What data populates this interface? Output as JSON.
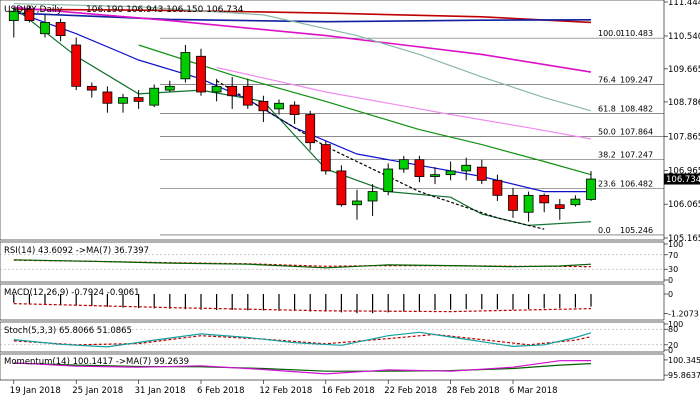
{
  "chart_data": {
    "type": "candlestick",
    "instrument_label": "USDJPY,Daily",
    "ohlc_readout": "106.190 106.943 106.150 106.734",
    "current_price_label": "106.734",
    "price_axis": {
      "ylim": [
        105.165,
        111.444
      ],
      "tick_labels": [
        "111.444",
        "110.540",
        "109.665",
        "108.786",
        "107.865",
        "106.965",
        "106.065",
        "105.165"
      ],
      "tick_values": [
        111.444,
        110.54,
        109.665,
        108.786,
        107.865,
        106.965,
        106.065,
        105.165
      ]
    },
    "x_axis_labels": [
      {
        "label": "19 Jan 2018",
        "index": 0
      },
      {
        "label": "25 Jan 2018",
        "index": 4
      },
      {
        "label": "31 Jan 2018",
        "index": 8
      },
      {
        "label": "6 Feb 2018",
        "index": 12
      },
      {
        "label": "12 Feb 2018",
        "index": 16
      },
      {
        "label": "16 Feb 2018",
        "index": 20
      },
      {
        "label": "22 Feb 2018",
        "index": 24
      },
      {
        "label": "28 Feb 2018",
        "index": 28
      },
      {
        "label": "6 Mar 2018",
        "index": 32
      }
    ],
    "candles": [
      {
        "o": 110.95,
        "h": 111.3,
        "l": 110.5,
        "c": 111.2
      },
      {
        "o": 111.25,
        "h": 111.35,
        "l": 110.9,
        "c": 110.95
      },
      {
        "o": 110.6,
        "h": 111.1,
        "l": 110.5,
        "c": 110.9
      },
      {
        "o": 110.9,
        "h": 111.0,
        "l": 110.4,
        "c": 110.55
      },
      {
        "o": 110.3,
        "h": 110.5,
        "l": 109.1,
        "c": 109.2
      },
      {
        "o": 109.2,
        "h": 109.3,
        "l": 108.9,
        "c": 109.1
      },
      {
        "o": 109.05,
        "h": 109.2,
        "l": 108.5,
        "c": 108.75
      },
      {
        "o": 108.75,
        "h": 109.0,
        "l": 108.5,
        "c": 108.9
      },
      {
        "o": 108.9,
        "h": 109.1,
        "l": 108.6,
        "c": 108.8
      },
      {
        "o": 108.7,
        "h": 109.25,
        "l": 108.65,
        "c": 109.15
      },
      {
        "o": 109.1,
        "h": 109.35,
        "l": 109.05,
        "c": 109.2
      },
      {
        "o": 109.4,
        "h": 110.3,
        "l": 109.3,
        "c": 110.1
      },
      {
        "o": 110.0,
        "h": 110.2,
        "l": 108.95,
        "c": 109.05
      },
      {
        "o": 109.05,
        "h": 109.4,
        "l": 108.8,
        "c": 109.2
      },
      {
        "o": 109.2,
        "h": 109.45,
        "l": 108.6,
        "c": 108.95
      },
      {
        "o": 109.2,
        "h": 109.4,
        "l": 108.6,
        "c": 108.7
      },
      {
        "o": 108.8,
        "h": 108.95,
        "l": 108.25,
        "c": 108.55
      },
      {
        "o": 108.6,
        "h": 108.85,
        "l": 108.45,
        "c": 108.75
      },
      {
        "o": 108.7,
        "h": 108.8,
        "l": 108.2,
        "c": 108.45
      },
      {
        "o": 108.45,
        "h": 108.55,
        "l": 107.5,
        "c": 107.7
      },
      {
        "o": 107.65,
        "h": 107.75,
        "l": 106.85,
        "c": 106.95
      },
      {
        "o": 106.95,
        "h": 107.1,
        "l": 106.0,
        "c": 106.05
      },
      {
        "o": 106.05,
        "h": 106.45,
        "l": 105.65,
        "c": 106.15
      },
      {
        "o": 106.15,
        "h": 106.6,
        "l": 105.75,
        "c": 106.4
      },
      {
        "o": 106.4,
        "h": 107.15,
        "l": 106.3,
        "c": 107.0
      },
      {
        "o": 107.0,
        "h": 107.35,
        "l": 106.9,
        "c": 107.25
      },
      {
        "o": 107.25,
        "h": 107.35,
        "l": 106.65,
        "c": 106.8
      },
      {
        "o": 106.8,
        "h": 107.05,
        "l": 106.6,
        "c": 106.85
      },
      {
        "o": 106.85,
        "h": 107.2,
        "l": 106.7,
        "c": 106.95
      },
      {
        "o": 106.95,
        "h": 107.3,
        "l": 106.7,
        "c": 107.1
      },
      {
        "o": 107.05,
        "h": 107.25,
        "l": 106.6,
        "c": 106.7
      },
      {
        "o": 106.7,
        "h": 106.85,
        "l": 106.15,
        "c": 106.3
      },
      {
        "o": 106.3,
        "h": 106.5,
        "l": 105.7,
        "c": 105.9
      },
      {
        "o": 105.85,
        "h": 106.4,
        "l": 105.6,
        "c": 106.3
      },
      {
        "o": 106.3,
        "h": 106.35,
        "l": 105.85,
        "c": 106.1
      },
      {
        "o": 106.05,
        "h": 106.2,
        "l": 105.65,
        "c": 105.95
      },
      {
        "o": 106.05,
        "h": 106.3,
        "l": 106.0,
        "c": 106.2
      },
      {
        "o": 106.19,
        "h": 106.943,
        "l": 106.15,
        "c": 106.734
      }
    ],
    "ma_lines": [
      {
        "color": "#c00000",
        "values": [
          [
            0,
            111.25
          ],
          [
            10,
            111.22
          ],
          [
            20,
            111.15
          ],
          [
            30,
            111.05
          ],
          [
            37,
            110.9
          ]
        ]
      },
      {
        "color": "#1020a0",
        "values": [
          [
            0,
            111.15
          ],
          [
            10,
            110.98
          ],
          [
            20,
            110.92
          ],
          [
            30,
            110.96
          ],
          [
            37,
            110.97
          ]
        ]
      },
      {
        "color": "#dd10c8",
        "values": [
          [
            0,
            111.3
          ],
          [
            10,
            110.95
          ],
          [
            20,
            110.55
          ],
          [
            30,
            110.05
          ],
          [
            37,
            109.58
          ]
        ]
      },
      {
        "color": "#f08cf0",
        "values": [
          [
            13,
            109.7
          ],
          [
            20,
            109.05
          ],
          [
            28,
            108.45
          ],
          [
            33,
            108.1
          ],
          [
            37,
            107.8
          ]
        ]
      },
      {
        "color": "#8ab8a8",
        "values": [
          [
            0,
            111.4
          ],
          [
            8,
            111.32
          ],
          [
            16,
            111.1
          ],
          [
            22,
            110.55
          ],
          [
            26,
            110.05
          ],
          [
            30,
            109.45
          ],
          [
            34,
            108.9
          ],
          [
            37,
            108.55
          ]
        ]
      },
      {
        "color": "#109010",
        "values": [
          [
            8,
            110.3
          ],
          [
            14,
            109.5
          ],
          [
            20,
            108.8
          ],
          [
            26,
            108.05
          ],
          [
            30,
            107.65
          ],
          [
            34,
            107.2
          ],
          [
            37,
            106.85
          ]
        ]
      },
      {
        "color": "#1010d0",
        "values": [
          [
            0,
            111.2
          ],
          [
            4,
            110.6
          ],
          [
            8,
            109.9
          ],
          [
            12,
            109.4
          ],
          [
            15,
            108.85
          ],
          [
            18,
            108.1
          ],
          [
            22,
            107.4
          ],
          [
            26,
            107.1
          ],
          [
            30,
            106.8
          ],
          [
            34,
            106.4
          ],
          [
            37,
            106.4
          ]
        ]
      },
      {
        "color": "#107030",
        "values": [
          [
            0,
            111.3
          ],
          [
            4,
            110.0
          ],
          [
            8,
            109.0
          ],
          [
            12,
            109.1
          ],
          [
            16,
            108.8
          ],
          [
            20,
            107.0
          ],
          [
            24,
            106.4
          ],
          [
            28,
            106.25
          ],
          [
            30,
            105.8
          ],
          [
            33,
            105.5
          ],
          [
            37,
            105.6
          ]
        ]
      },
      {
        "color": "#000000",
        "dash": true,
        "values": [
          [
            13,
            109.35
          ],
          [
            20,
            107.6
          ],
          [
            26,
            106.4
          ],
          [
            31,
            105.7
          ],
          [
            34,
            105.4
          ]
        ]
      }
    ],
    "fibonacci": [
      {
        "level": "100.0",
        "price": 110.483
      },
      {
        "level": "76.4",
        "price": 109.247
      },
      {
        "level": "61.8",
        "price": 108.482
      },
      {
        "level": "50.0",
        "price": 107.864
      },
      {
        "level": "38.2",
        "price": 107.247
      },
      {
        "level": "23.6",
        "price": 106.482
      },
      {
        "level": "0.0",
        "price": 105.246
      }
    ],
    "indicators": {
      "rsi": {
        "label": "RSI(14) 43.6092 ->MA(7) 36.7397",
        "ylim": [
          0,
          100
        ],
        "tick_labels": [
          "100",
          "70",
          "30",
          "0"
        ],
        "tick_values": [
          100,
          70,
          30,
          0
        ],
        "rsi": [
          [
            0,
            56
          ],
          [
            5,
            52
          ],
          [
            10,
            47
          ],
          [
            15,
            44
          ],
          [
            20,
            34
          ],
          [
            24,
            42
          ],
          [
            28,
            40
          ],
          [
            32,
            37
          ],
          [
            35,
            39
          ],
          [
            37,
            44
          ]
        ],
        "ma": [
          [
            0,
            55
          ],
          [
            5,
            52
          ],
          [
            10,
            48
          ],
          [
            15,
            45
          ],
          [
            20,
            38
          ],
          [
            24,
            40
          ],
          [
            28,
            40
          ],
          [
            32,
            38
          ],
          [
            35,
            38
          ],
          [
            37,
            37
          ]
        ]
      },
      "macd": {
        "label": "MACD(12,26,9) -0.7924 -0.9061",
        "ylim": [
          -1.5,
          0.5
        ],
        "tick_labels": [
          "0",
          "-1.2073"
        ],
        "tick_values": [
          0,
          -1.2073
        ],
        "bars": [
          -0.55,
          -0.6,
          -0.62,
          -0.65,
          -0.7,
          -0.75,
          -0.8,
          -0.85,
          -0.88,
          -0.9,
          -0.92,
          -0.95,
          -0.98,
          -1.0,
          -1.0,
          -1.02,
          -1.03,
          -1.05,
          -1.05,
          -1.1,
          -1.1,
          -1.15,
          -1.2,
          -1.2,
          -1.15,
          -1.1,
          -1.05,
          -1.0,
          -0.98,
          -0.95,
          -0.95,
          -0.96,
          -0.98,
          -0.95,
          -0.9,
          -0.88,
          -0.85,
          -0.79
        ],
        "signal": [
          [
            0,
            -0.6
          ],
          [
            10,
            -0.85
          ],
          [
            20,
            -1.05
          ],
          [
            28,
            -1.1
          ],
          [
            37,
            -0.91
          ]
        ]
      },
      "stoch": {
        "label": "Stoch(5,3,3) 65.8066 51.0865",
        "ylim": [
          0,
          100
        ],
        "tick_labels": [
          "100",
          "80",
          "20",
          "0"
        ],
        "tick_values": [
          100,
          80,
          20,
          0
        ],
        "k": [
          [
            0,
            40
          ],
          [
            3,
            22
          ],
          [
            6,
            12
          ],
          [
            9,
            38
          ],
          [
            12,
            62
          ],
          [
            15,
            48
          ],
          [
            18,
            28
          ],
          [
            21,
            18
          ],
          [
            24,
            55
          ],
          [
            26,
            68
          ],
          [
            28,
            50
          ],
          [
            30,
            32
          ],
          [
            32,
            14
          ],
          [
            34,
            20
          ],
          [
            36,
            48
          ],
          [
            37,
            66
          ]
        ],
        "d": [
          [
            0,
            35
          ],
          [
            4,
            20
          ],
          [
            8,
            25
          ],
          [
            12,
            55
          ],
          [
            16,
            42
          ],
          [
            20,
            24
          ],
          [
            24,
            44
          ],
          [
            27,
            60
          ],
          [
            30,
            40
          ],
          [
            33,
            20
          ],
          [
            36,
            38
          ],
          [
            37,
            51
          ]
        ]
      },
      "momentum": {
        "label": "Momentum(14) 100.1417 ->MA(7) 99.2639",
        "ylim": [
          95,
          101.5
        ],
        "tick_labels": [
          "100.3454",
          "95.8637"
        ],
        "tick_values": [
          100.3454,
          95.8637
        ],
        "mom": [
          [
            0,
            99.5
          ],
          [
            4,
            98.5
          ],
          [
            8,
            98.2
          ],
          [
            12,
            98.6
          ],
          [
            16,
            97.5
          ],
          [
            20,
            96.2
          ],
          [
            24,
            97.4
          ],
          [
            28,
            97.0
          ],
          [
            32,
            98.2
          ],
          [
            35,
            100.1
          ],
          [
            37,
            100.14
          ]
        ],
        "ma": [
          [
            0,
            99.4
          ],
          [
            4,
            98.8
          ],
          [
            8,
            98.4
          ],
          [
            12,
            98.3
          ],
          [
            16,
            97.8
          ],
          [
            20,
            97.0
          ],
          [
            24,
            97.0
          ],
          [
            28,
            97.2
          ],
          [
            32,
            97.8
          ],
          [
            35,
            98.8
          ],
          [
            37,
            99.26
          ]
        ]
      }
    }
  }
}
